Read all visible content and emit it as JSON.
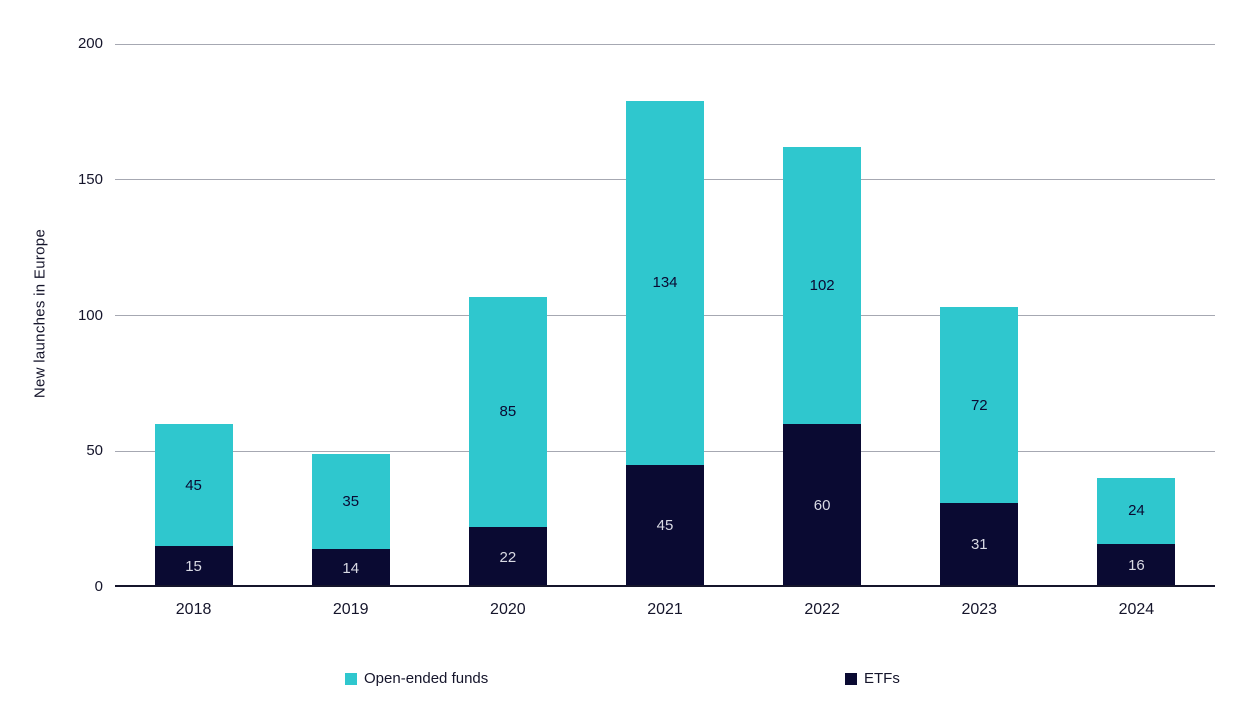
{
  "chart_data": {
    "type": "bar",
    "stacked": true,
    "title": "",
    "xlabel": "",
    "ylabel": "New launches in Europe",
    "categories": [
      "2018",
      "2019",
      "2020",
      "2021",
      "2022",
      "2023",
      "2024"
    ],
    "series": [
      {
        "name": "ETFs",
        "color": "#0A0A32",
        "label_color": "#D9DAE4",
        "values": [
          15,
          14,
          22,
          45,
          60,
          31,
          16
        ]
      },
      {
        "name": "Open-ended funds",
        "color": "#2FC7CE",
        "label_color": "#0A0A32",
        "values": [
          45,
          35,
          85,
          134,
          102,
          72,
          24
        ]
      }
    ],
    "totals": [
      60,
      49,
      107,
      179,
      162,
      103,
      40
    ],
    "ylim": [
      0,
      200
    ],
    "yticks": [
      0,
      50,
      100,
      150,
      200
    ],
    "grid": true,
    "legend_position": "bottom"
  },
  "legend": {
    "items": [
      {
        "label": "Open-ended funds",
        "color": "#2FC7CE"
      },
      {
        "label": "ETFs",
        "color": "#0A0A32"
      }
    ]
  },
  "colors": {
    "grid": "#A6A8B2",
    "axis": "#15152B",
    "text": "#15152B"
  }
}
